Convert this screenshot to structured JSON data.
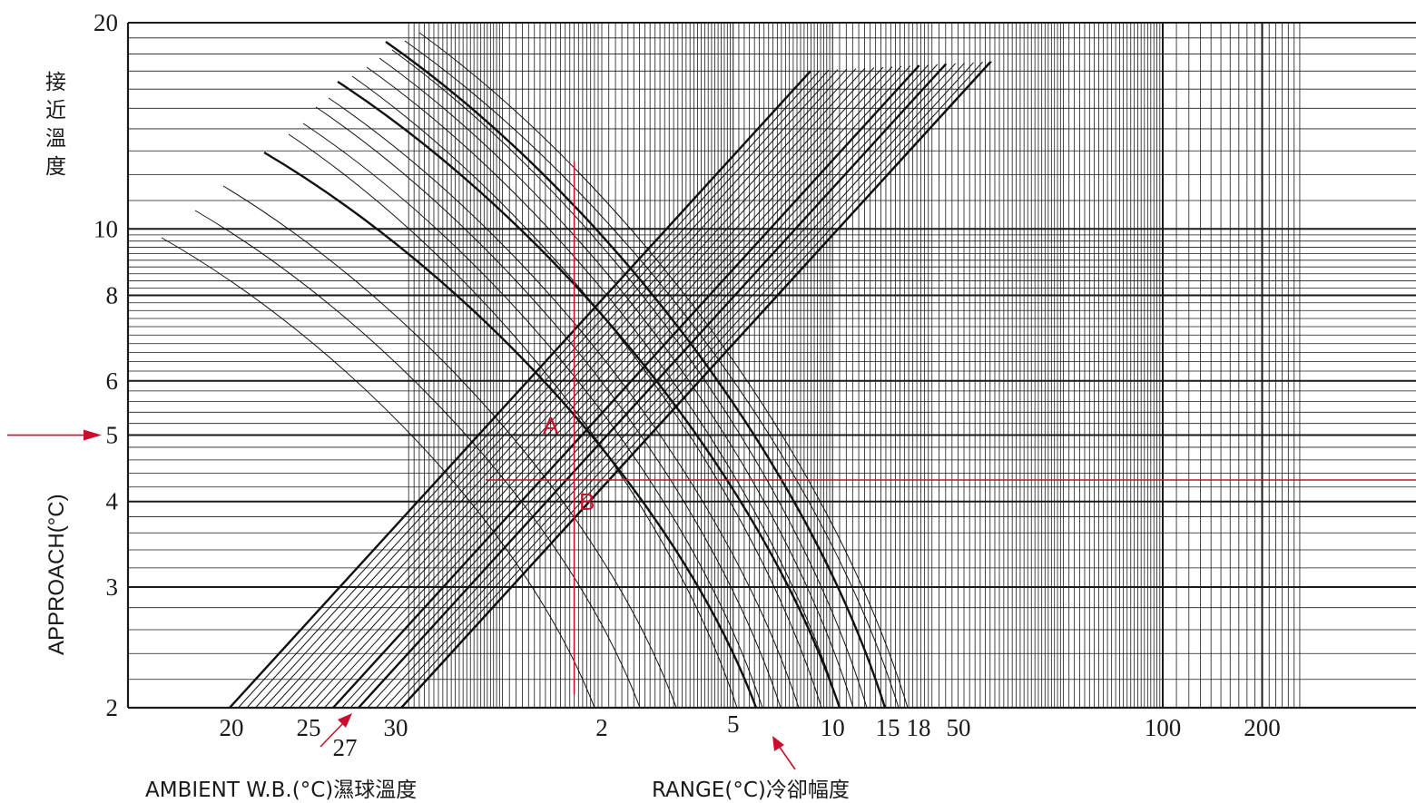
{
  "colors": {
    "grid": "#1a1a1a",
    "curves": "#111111",
    "annotation": "#c8102e",
    "background": "#ffffff"
  },
  "chart_data": {
    "type": "line",
    "title": "",
    "ylabel": "APPROACH(°C)",
    "ylabel_cjk": [
      "接",
      "近",
      "溫",
      "度"
    ],
    "x_label_left": "AMBIENT W.B.(°C)濕球溫度",
    "x_label_right": "RANGE(°C)冷卻幅度",
    "y_scale": "log",
    "x_scale": "log",
    "ylim": [
      2,
      20
    ],
    "xlim": [
      0.5,
      250
    ],
    "y_ticks": [
      "20",
      "10",
      "8",
      "6",
      "5",
      "4",
      "3",
      "2"
    ],
    "x_ticks_range": [
      "2",
      "5",
      "10",
      "100",
      "200"
    ],
    "x_ticks_wb": [
      "20",
      "25",
      "27",
      "30"
    ],
    "x_ticks_extra": [
      "15",
      "18",
      "50"
    ],
    "grid": true,
    "range_curve_labels": [
      "5",
      "10",
      "15",
      "18"
    ],
    "wb_line_labels": [
      "20",
      "25",
      "27",
      "30"
    ],
    "annotations": {
      "point_a": "A",
      "point_b": "B",
      "approach_value": 5,
      "range_value": 5,
      "wb_value": 27,
      "vertical_line_range": 1.65,
      "horizontal_line_approach": 4.3
    }
  }
}
